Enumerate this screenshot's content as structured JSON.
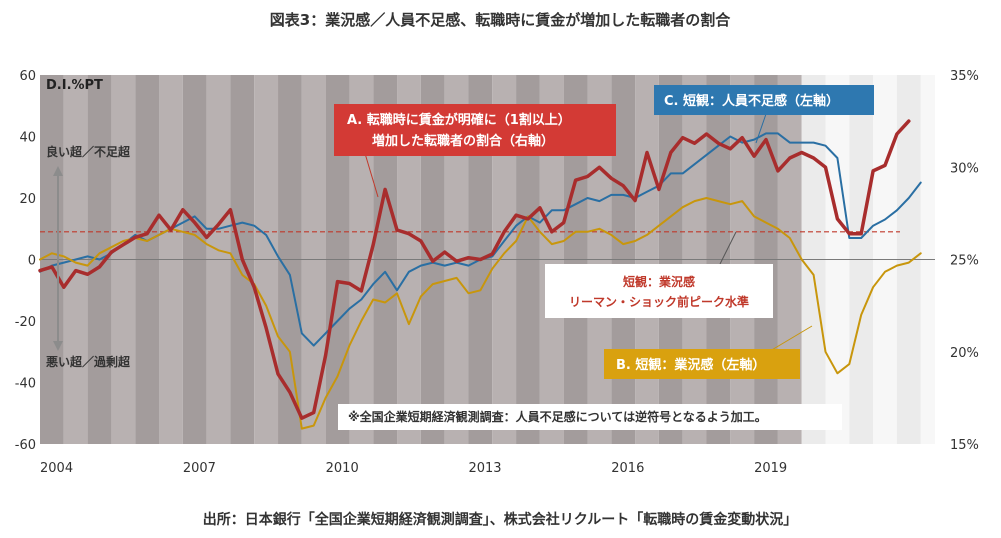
{
  "title": "図表3：業況感／人員不足感、転職時に賃金が増加した転職者の割合",
  "source": "出所：日本銀行「全国企業短期経済観測調査」、株式会社リクルート「転職時の賃金変動状況」",
  "note": "※全国企業短期経済観測調査：人員不足感については逆符号となるよう加工。",
  "unit_label": "D.I.%PT",
  "side_labels": {
    "good": "良い超／不足超",
    "bad": "悪い超／過剰超"
  },
  "callouts": {
    "a_line1": "A. 転職時に賃金が明確に（1割以上）",
    "a_line2": "増加した転職者の割合（右軸）",
    "b": "B. 短観：業況感（左軸）",
    "c": "C. 短観：人員不足感（左軸）",
    "ref_line1": "短観：業況感",
    "ref_line2": "リーマン・ショック前ピーク水準"
  },
  "colors": {
    "a": "#a82d2d",
    "b": "#c8960c",
    "c": "#2a6fa3",
    "ref": "#c0392b",
    "callout_a_bg": "#d33a35",
    "callout_b_bg": "#d9a10f",
    "callout_c_bg": "#2e78b0"
  },
  "chart_data": {
    "type": "line",
    "x_range": [
      2004.0,
      2022.8
    ],
    "x_ticks": [
      2004,
      2007,
      2010,
      2013,
      2016,
      2019
    ],
    "x_tick_labels": [
      "2004",
      "2007",
      "2010",
      "2013",
      "2016",
      "2019"
    ],
    "y_left": {
      "range": [
        -60,
        60
      ],
      "ticks": [
        -60,
        -40,
        -20,
        0,
        20,
        40,
        60
      ],
      "tick_labels": [
        "-60",
        "-40",
        "-20",
        "0",
        "20",
        "40",
        "60"
      ]
    },
    "y_right": {
      "range": [
        15,
        35
      ],
      "ticks": [
        15,
        20,
        25,
        30,
        35
      ],
      "tick_labels": [
        "15%",
        "20%",
        "25%",
        "30%",
        "35%"
      ]
    },
    "reference_line": {
      "axis": "left",
      "value": 9
    },
    "series": [
      {
        "name": "C. 短観：人員不足感（左軸）",
        "axis": "left",
        "points": [
          [
            2004.0,
            -4
          ],
          [
            2004.25,
            -2
          ],
          [
            2004.5,
            -1
          ],
          [
            2004.75,
            0
          ],
          [
            2005.0,
            1
          ],
          [
            2005.25,
            0
          ],
          [
            2005.5,
            2
          ],
          [
            2005.75,
            5
          ],
          [
            2006.0,
            8
          ],
          [
            2006.25,
            6
          ],
          [
            2006.5,
            8
          ],
          [
            2006.75,
            10
          ],
          [
            2007.0,
            12
          ],
          [
            2007.25,
            14
          ],
          [
            2007.5,
            10
          ],
          [
            2007.75,
            10
          ],
          [
            2008.0,
            11
          ],
          [
            2008.25,
            12
          ],
          [
            2008.5,
            11
          ],
          [
            2008.75,
            8
          ],
          [
            2009.0,
            1
          ],
          [
            2009.25,
            -5
          ],
          [
            2009.5,
            -24
          ],
          [
            2009.75,
            -28
          ],
          [
            2010.0,
            -24
          ],
          [
            2010.25,
            -20
          ],
          [
            2010.5,
            -16
          ],
          [
            2010.75,
            -13
          ],
          [
            2011.0,
            -8
          ],
          [
            2011.25,
            -4
          ],
          [
            2011.5,
            -10
          ],
          [
            2011.75,
            -4
          ],
          [
            2012.0,
            -2
          ],
          [
            2012.25,
            -1
          ],
          [
            2012.5,
            -2
          ],
          [
            2012.75,
            -1
          ],
          [
            2013.0,
            -2
          ],
          [
            2013.25,
            0
          ],
          [
            2013.5,
            1
          ],
          [
            2013.75,
            6
          ],
          [
            2014.0,
            11
          ],
          [
            2014.25,
            14
          ],
          [
            2014.5,
            12
          ],
          [
            2014.75,
            16
          ],
          [
            2015.0,
            16
          ],
          [
            2015.25,
            18
          ],
          [
            2015.5,
            20
          ],
          [
            2015.75,
            19
          ],
          [
            2016.0,
            21
          ],
          [
            2016.25,
            21
          ],
          [
            2016.5,
            20
          ],
          [
            2016.75,
            22
          ],
          [
            2017.0,
            24
          ],
          [
            2017.25,
            28
          ],
          [
            2017.5,
            28
          ],
          [
            2017.75,
            31
          ],
          [
            2018.0,
            34
          ],
          [
            2018.25,
            37
          ],
          [
            2018.5,
            40
          ],
          [
            2018.75,
            38
          ],
          [
            2019.0,
            39
          ],
          [
            2019.25,
            41
          ],
          [
            2019.5,
            41
          ],
          [
            2019.75,
            38
          ],
          [
            2020.0,
            38
          ],
          [
            2020.25,
            38
          ],
          [
            2020.5,
            37
          ],
          [
            2020.75,
            33
          ],
          [
            2021.0,
            7
          ],
          [
            2021.25,
            7
          ],
          [
            2021.5,
            11
          ],
          [
            2021.75,
            13
          ],
          [
            2022.0,
            16
          ],
          [
            2022.25,
            20
          ],
          [
            2022.5,
            25
          ]
        ]
      },
      {
        "name": "B. 短観：業況感（左軸）",
        "axis": "left",
        "points": [
          [
            2004.0,
            0
          ],
          [
            2004.25,
            2
          ],
          [
            2004.5,
            1
          ],
          [
            2004.75,
            -1
          ],
          [
            2005.0,
            -2
          ],
          [
            2005.25,
            2
          ],
          [
            2005.5,
            4
          ],
          [
            2005.75,
            6
          ],
          [
            2006.0,
            7
          ],
          [
            2006.25,
            6
          ],
          [
            2006.5,
            8
          ],
          [
            2006.75,
            10
          ],
          [
            2007.0,
            9
          ],
          [
            2007.25,
            8
          ],
          [
            2007.5,
            5
          ],
          [
            2007.75,
            3
          ],
          [
            2008.0,
            2
          ],
          [
            2008.25,
            -5
          ],
          [
            2008.5,
            -8
          ],
          [
            2008.75,
            -15
          ],
          [
            2009.0,
            -25
          ],
          [
            2009.25,
            -30
          ],
          [
            2009.5,
            -55
          ],
          [
            2009.75,
            -54
          ],
          [
            2010.0,
            -45
          ],
          [
            2010.25,
            -38
          ],
          [
            2010.5,
            -28
          ],
          [
            2010.75,
            -20
          ],
          [
            2011.0,
            -13
          ],
          [
            2011.25,
            -14
          ],
          [
            2011.5,
            -11
          ],
          [
            2011.75,
            -21
          ],
          [
            2012.0,
            -12
          ],
          [
            2012.25,
            -8
          ],
          [
            2012.5,
            -7
          ],
          [
            2012.75,
            -6
          ],
          [
            2013.0,
            -11
          ],
          [
            2013.25,
            -10
          ],
          [
            2013.5,
            -3
          ],
          [
            2013.75,
            2
          ],
          [
            2014.0,
            6
          ],
          [
            2014.25,
            14
          ],
          [
            2014.5,
            9
          ],
          [
            2014.75,
            5
          ],
          [
            2015.0,
            6
          ],
          [
            2015.25,
            9
          ],
          [
            2015.5,
            9
          ],
          [
            2015.75,
            10
          ],
          [
            2016.0,
            8
          ],
          [
            2016.25,
            5
          ],
          [
            2016.5,
            6
          ],
          [
            2016.75,
            8
          ],
          [
            2017.0,
            11
          ],
          [
            2017.25,
            14
          ],
          [
            2017.5,
            17
          ],
          [
            2017.75,
            19
          ],
          [
            2018.0,
            20
          ],
          [
            2018.25,
            19
          ],
          [
            2018.5,
            18
          ],
          [
            2018.75,
            19
          ],
          [
            2019.0,
            14
          ],
          [
            2019.25,
            12
          ],
          [
            2019.5,
            10
          ],
          [
            2019.75,
            7
          ],
          [
            2020.0,
            0
          ],
          [
            2020.25,
            -5
          ],
          [
            2020.5,
            -30
          ],
          [
            2020.75,
            -37
          ],
          [
            2021.0,
            -34
          ],
          [
            2021.25,
            -18
          ],
          [
            2021.5,
            -9
          ],
          [
            2021.75,
            -4
          ],
          [
            2022.0,
            -2
          ],
          [
            2022.25,
            -1
          ],
          [
            2022.5,
            2
          ]
        ]
      },
      {
        "name": "A. 転職時に賃金が明確に（1割以上）増加した転職者の割合（右軸）",
        "axis": "right",
        "points": [
          [
            2004.0,
            24.4
          ],
          [
            2004.25,
            24.6
          ],
          [
            2004.5,
            23.5
          ],
          [
            2004.75,
            24.4
          ],
          [
            2005.0,
            24.2
          ],
          [
            2005.25,
            24.6
          ],
          [
            2005.5,
            25.4
          ],
          [
            2005.75,
            25.8
          ],
          [
            2006.0,
            26.2
          ],
          [
            2006.25,
            26.4
          ],
          [
            2006.5,
            27.4
          ],
          [
            2006.75,
            26.6
          ],
          [
            2007.0,
            27.7
          ],
          [
            2007.25,
            27.0
          ],
          [
            2007.5,
            26.2
          ],
          [
            2007.75,
            26.9
          ],
          [
            2008.0,
            27.7
          ],
          [
            2008.25,
            25.0
          ],
          [
            2008.5,
            23.5
          ],
          [
            2008.75,
            21.3
          ],
          [
            2009.0,
            18.8
          ],
          [
            2009.25,
            17.8
          ],
          [
            2009.5,
            16.4
          ],
          [
            2009.75,
            16.7
          ],
          [
            2010.0,
            19.8
          ],
          [
            2010.25,
            23.8
          ],
          [
            2010.5,
            23.7
          ],
          [
            2010.75,
            23.3
          ],
          [
            2011.0,
            25.8
          ],
          [
            2011.25,
            28.8
          ],
          [
            2011.5,
            26.6
          ],
          [
            2011.75,
            26.4
          ],
          [
            2012.0,
            26.0
          ],
          [
            2012.25,
            24.9
          ],
          [
            2012.5,
            25.4
          ],
          [
            2012.75,
            24.9
          ],
          [
            2013.0,
            25.1
          ],
          [
            2013.25,
            25.0
          ],
          [
            2013.5,
            25.3
          ],
          [
            2013.75,
            26.5
          ],
          [
            2014.0,
            27.4
          ],
          [
            2014.25,
            27.2
          ],
          [
            2014.5,
            27.8
          ],
          [
            2014.75,
            26.5
          ],
          [
            2015.0,
            27.0
          ],
          [
            2015.25,
            29.3
          ],
          [
            2015.5,
            29.5
          ],
          [
            2015.75,
            30.0
          ],
          [
            2016.0,
            29.4
          ],
          [
            2016.25,
            29.0
          ],
          [
            2016.5,
            28.2
          ],
          [
            2016.75,
            30.8
          ],
          [
            2017.0,
            28.8
          ],
          [
            2017.25,
            30.8
          ],
          [
            2017.5,
            31.6
          ],
          [
            2017.75,
            31.3
          ],
          [
            2018.0,
            31.8
          ],
          [
            2018.25,
            31.3
          ],
          [
            2018.5,
            31.0
          ],
          [
            2018.75,
            31.6
          ],
          [
            2019.0,
            30.6
          ],
          [
            2019.25,
            31.5
          ],
          [
            2019.5,
            29.8
          ],
          [
            2019.75,
            30.5
          ],
          [
            2020.0,
            30.8
          ],
          [
            2020.25,
            30.5
          ],
          [
            2020.5,
            30.0
          ],
          [
            2020.75,
            27.2
          ],
          [
            2021.0,
            26.4
          ],
          [
            2021.25,
            26.4
          ],
          [
            2021.5,
            29.8
          ],
          [
            2021.75,
            30.1
          ],
          [
            2022.0,
            31.8
          ],
          [
            2022.25,
            32.5
          ]
        ]
      }
    ]
  }
}
